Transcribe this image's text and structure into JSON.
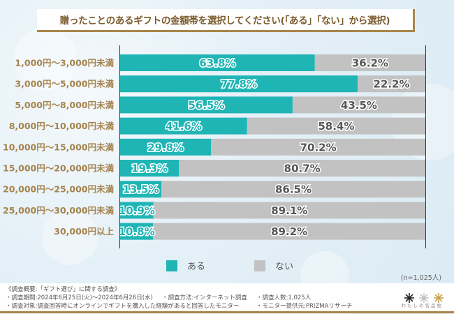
{
  "title": "贈ったことのあるギフトの金額帯を選択してください(「ある」「ない」から選択)",
  "colors": {
    "aru": "#20b5b5",
    "nai": "#c2c2c2",
    "label": "#a5834c",
    "accent": "#a8874a"
  },
  "legend": [
    {
      "key": "aru",
      "label": "ある",
      "color": "#20b5b5"
    },
    {
      "key": "nai",
      "label": "ない",
      "color": "#c2c2c2"
    }
  ],
  "sample_note": "(n=1,025人)",
  "footer": {
    "line1": "《調査概要:「ギフト選び」に関する調査》",
    "period": "・調査期間:2024年6月25日(火)～2024年6月26日(水)",
    "method": "・調査方法:インターネット調査",
    "count": "・調査人数:1,025人",
    "target": "・調査対象:調査回答時にオンラインでギフトを購入した経験があると回答したモニター",
    "provider": "・モニター提供元:PRIZMAリサーチ",
    "logo_text": "わたしの名品帖"
  },
  "chart_data": {
    "type": "bar",
    "orientation": "horizontal-stacked-100",
    "title": "贈ったことのあるギフトの金額帯を選択してください(「ある」「ない」から選択)",
    "categories": [
      "1,000円～3,000円未満",
      "3,000円～5,000円未満",
      "5,000円～8,000円未満",
      "8,000円～10,000円未満",
      "10,000円～15,000円未満",
      "15,000円～20,000円未満",
      "20,000円～25,000円未満",
      "25,000円～30,000円未満",
      "30,000円以上"
    ],
    "series": [
      {
        "name": "ある",
        "values": [
          63.8,
          77.8,
          56.5,
          41.6,
          29.8,
          19.3,
          13.5,
          10.9,
          10.8
        ]
      },
      {
        "name": "ない",
        "values": [
          36.2,
          22.2,
          43.5,
          58.4,
          70.2,
          80.7,
          86.5,
          89.1,
          89.2
        ]
      }
    ],
    "unit": "%",
    "xlim": [
      0,
      100
    ],
    "grid": false,
    "legend_position": "bottom"
  }
}
